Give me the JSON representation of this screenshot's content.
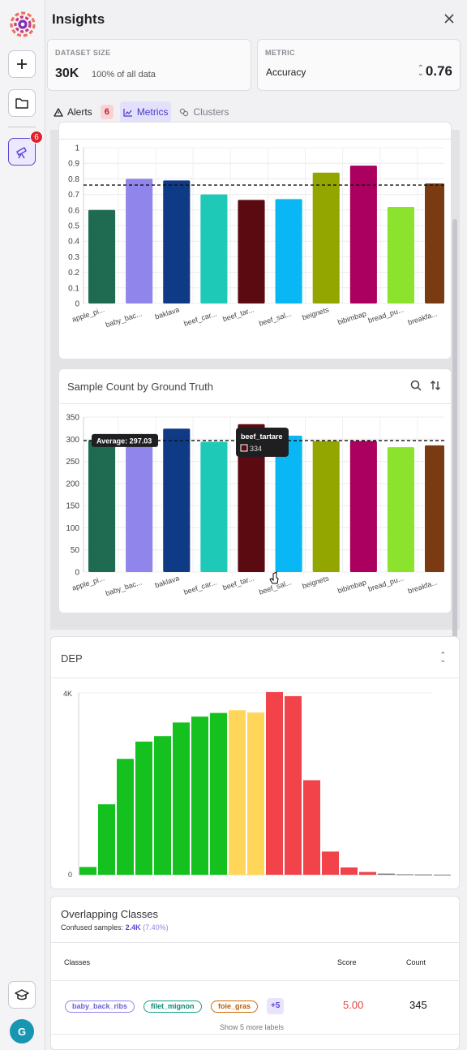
{
  "app": {
    "title": "Insights"
  },
  "rail": {
    "badge": "6",
    "avatar": "G"
  },
  "dataset": {
    "label": "DATASET SIZE",
    "value": "30K",
    "sub": "100% of all data"
  },
  "metric": {
    "label": "METRIC",
    "name": "Accuracy",
    "value": "0.76"
  },
  "tabs": [
    {
      "label": "Alerts",
      "icon": "warning-icon",
      "badge": "6"
    },
    {
      "label": "Metrics",
      "icon": "chart-icon"
    },
    {
      "label": "Clusters",
      "icon": "clusters-icon"
    }
  ],
  "colors": {
    "accent": "#5b45d6",
    "bars": [
      "#1e6b52",
      "#8f85ea",
      "#0f3a86",
      "#1ec9b8",
      "#5a0a10",
      "#09b7f5",
      "#93a600",
      "#ab0060",
      "#8be32e",
      "#7a3a12"
    ],
    "dep_green": "#14c11f",
    "dep_yellow": "#ffd65a",
    "dep_red": "#f2424a"
  },
  "chart_data": [
    {
      "type": "bar",
      "title": "",
      "categories": [
        "apple_pi...",
        "baby_bac...",
        "baklava",
        "beef_car...",
        "beef_tar...",
        "beef_sal...",
        "beignets",
        "bibimbap",
        "bread_pu...",
        "breakfa..."
      ],
      "values": [
        0.6,
        0.8,
        0.79,
        0.7,
        0.665,
        0.67,
        0.84,
        0.885,
        0.62,
        0.77
      ],
      "reference_line": 0.76,
      "yticks": [
        "0",
        "0.1",
        "0.2",
        "0.3",
        "0.4",
        "0.5",
        "0.6",
        "0.7",
        "0.8",
        "0.9",
        "1"
      ],
      "ylim": [
        0,
        1
      ],
      "grid": true
    },
    {
      "type": "bar",
      "title": "Sample Count by Ground Truth",
      "categories": [
        "apple_pi...",
        "baby_bac...",
        "baklava",
        "beef_car...",
        "beef_tar...",
        "beef_sal...",
        "beignets",
        "bibimbap",
        "bread_pu...",
        "breakfa..."
      ],
      "values": [
        298,
        297,
        324,
        294,
        334,
        308,
        296,
        296,
        282,
        286
      ],
      "average_label": "Average: 297.03",
      "average": 297.03,
      "tooltip": {
        "title": "beef_tartare",
        "value": "334"
      },
      "yticks": [
        "0",
        "50",
        "100",
        "150",
        "200",
        "250",
        "300",
        "350"
      ],
      "ylim": [
        0,
        350
      ],
      "grid": true
    },
    {
      "type": "bar",
      "title": "DEP",
      "yticks": [
        "0",
        "4K"
      ],
      "ylim": [
        0,
        4000
      ],
      "values": [
        170,
        1550,
        2550,
        2930,
        3050,
        3350,
        3480,
        3560,
        3620,
        3570,
        4020,
        3930,
        2080,
        510,
        160,
        60,
        25,
        10,
        5,
        3
      ],
      "bar_colors": [
        "green",
        "green",
        "green",
        "green",
        "green",
        "green",
        "green",
        "green",
        "yellow",
        "yellow",
        "red",
        "red",
        "red",
        "red",
        "red",
        "red",
        "red",
        "red",
        "red",
        "red"
      ]
    }
  ],
  "overlap": {
    "title": "Overlapping Classes",
    "confused_label": "Confused samples:",
    "confused_value": "2.4K",
    "confused_pct": "(7.40%)",
    "headers": {
      "classes": "Classes",
      "score": "Score",
      "count": "Count"
    },
    "row": {
      "chips": [
        {
          "label": "baby_back_ribs",
          "color": "#8f85ea"
        },
        {
          "label": "filet_mignon",
          "color": "#13a08a"
        },
        {
          "label": "foie_gras",
          "color": "#cc6a0a"
        }
      ],
      "more": "+5",
      "score": "5.00",
      "count": "345",
      "show_more": "Show 5 more labels"
    }
  }
}
